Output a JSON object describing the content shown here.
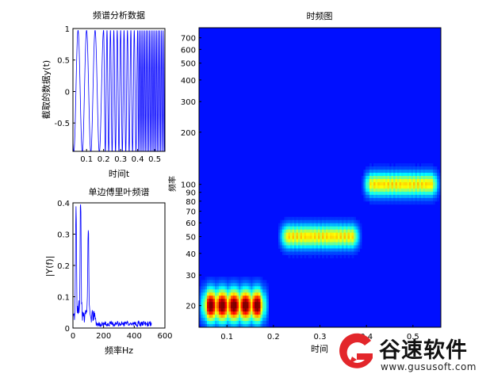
{
  "chart_data": [
    {
      "type": "line",
      "title": "频谱分析数据",
      "xlabel": "时间t",
      "ylabel": "截取的数据y(t)",
      "xlim": [
        0.02,
        0.56
      ],
      "ylim": [
        -0.95,
        1.0
      ],
      "x_ticks": [
        0.1,
        0.2,
        0.3,
        0.4,
        0.5
      ],
      "x_tick_labels": [
        "0.1",
        "0.2",
        "0.3",
        "0.4",
        "0.5"
      ],
      "y_ticks": [
        -0.5,
        0,
        0.5,
        1
      ],
      "y_tick_labels": [
        "-0.5",
        "0",
        "0.5",
        "1"
      ],
      "series": [
        {
          "color": "#0000ff",
          "segments": [
            {
              "t_start": 0.02,
              "t_end": 0.2,
              "freq_hz": 20
            },
            {
              "t_start": 0.2,
              "t_end": 0.4,
              "freq_hz": 50
            },
            {
              "t_start": 0.4,
              "t_end": 0.56,
              "freq_hz": 100
            }
          ]
        }
      ]
    },
    {
      "type": "line",
      "title": "单边傅里叶频谱",
      "xlabel": "频率Hz",
      "ylabel": "|Y(f)|",
      "xlim": [
        0,
        600
      ],
      "ylim": [
        0,
        0.4
      ],
      "x_ticks": [
        0,
        200,
        400,
        600
      ],
      "x_tick_labels": [
        "0",
        "200",
        "400",
        "600"
      ],
      "y_ticks": [
        0,
        0.1,
        0.2,
        0.3,
        0.4
      ],
      "y_tick_labels": [
        "0",
        "0.1",
        "0.2",
        "0.3",
        "0.4"
      ],
      "series": [
        {
          "color": "#0000ff",
          "peaks": [
            {
              "freq": 20,
              "amp": 0.34
            },
            {
              "freq": 50,
              "amp": 0.39
            },
            {
              "freq": 100,
              "amp": 0.29
            }
          ],
          "noise_floor": 0.012
        }
      ]
    },
    {
      "type": "heatmap",
      "title": "时频图",
      "xlabel": "时间",
      "ylabel": "频率",
      "xlim": [
        0.04,
        0.56
      ],
      "ylim": [
        15,
        800
      ],
      "y_scale": "log",
      "x_ticks": [
        0.1,
        0.2,
        0.3,
        0.4,
        0.5
      ],
      "x_tick_labels": [
        "0.1",
        "0.2",
        "0.3",
        "0.4",
        "0.5"
      ],
      "y_ticks": [
        20,
        30,
        40,
        50,
        60,
        70,
        80,
        90,
        100,
        200,
        300,
        400,
        500,
        600,
        700
      ],
      "y_tick_labels": [
        "20",
        "30",
        "40",
        "50",
        "60",
        "70",
        "80",
        "90",
        "100",
        "200",
        "300",
        "400",
        "500",
        "600",
        "700"
      ],
      "colormap": "jet",
      "components": [
        {
          "t_start": 0.04,
          "t_end": 0.19,
          "freq_hz": 20
        },
        {
          "t_start": 0.21,
          "t_end": 0.39,
          "freq_hz": 50
        },
        {
          "t_start": 0.39,
          "t_end": 0.56,
          "freq_hz": 100
        }
      ]
    }
  ],
  "watermark": {
    "name": "谷速软件",
    "url": "www.gususoft.com"
  }
}
